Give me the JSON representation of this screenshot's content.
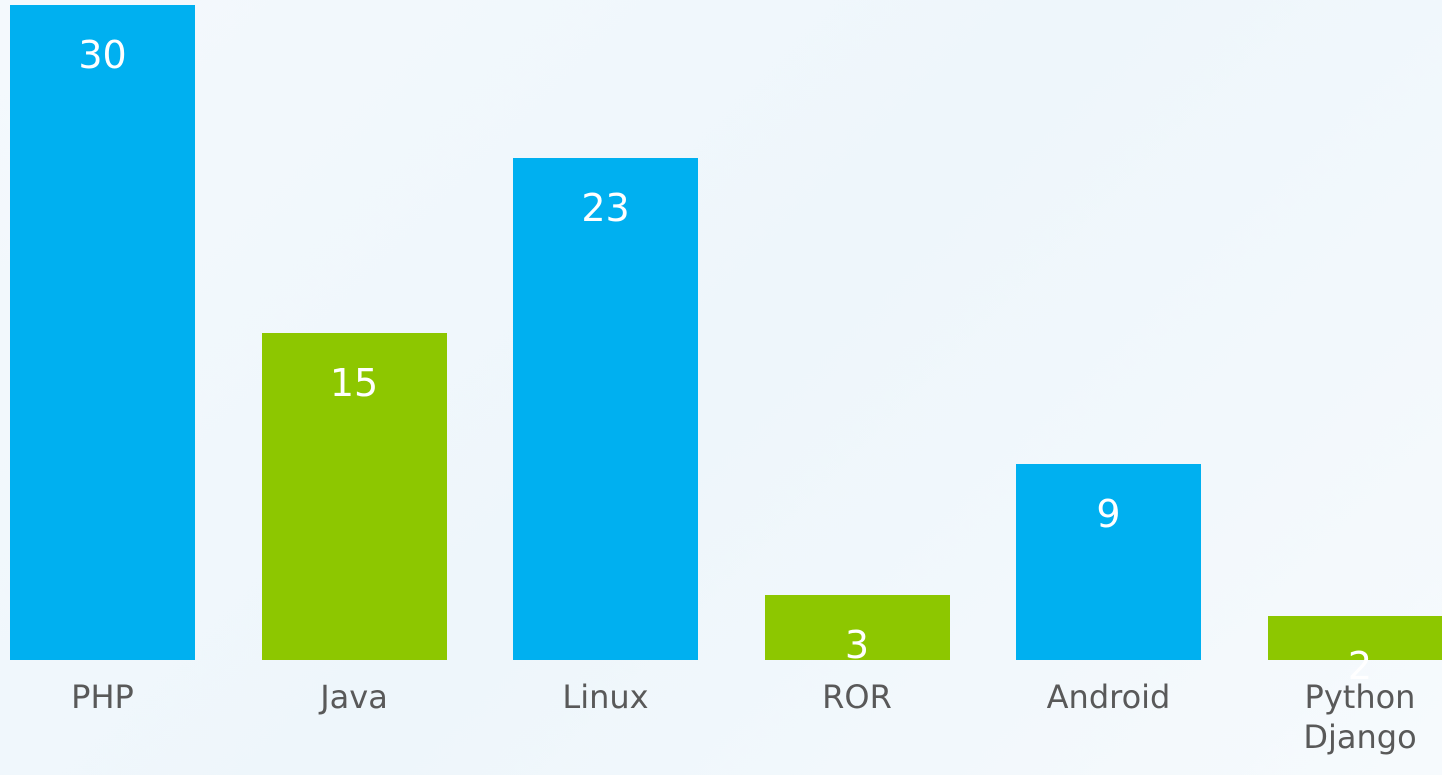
{
  "chart_data": {
    "type": "bar",
    "categories": [
      "PHP",
      "Java",
      "Linux",
      "ROR",
      "Android",
      "Python Django"
    ],
    "values": [
      30,
      15,
      23,
      3,
      9,
      2
    ],
    "colors": [
      "#00b0f0",
      "#8dc700",
      "#00b0f0",
      "#8dc700",
      "#00b0f0",
      "#8dc700"
    ]
  }
}
